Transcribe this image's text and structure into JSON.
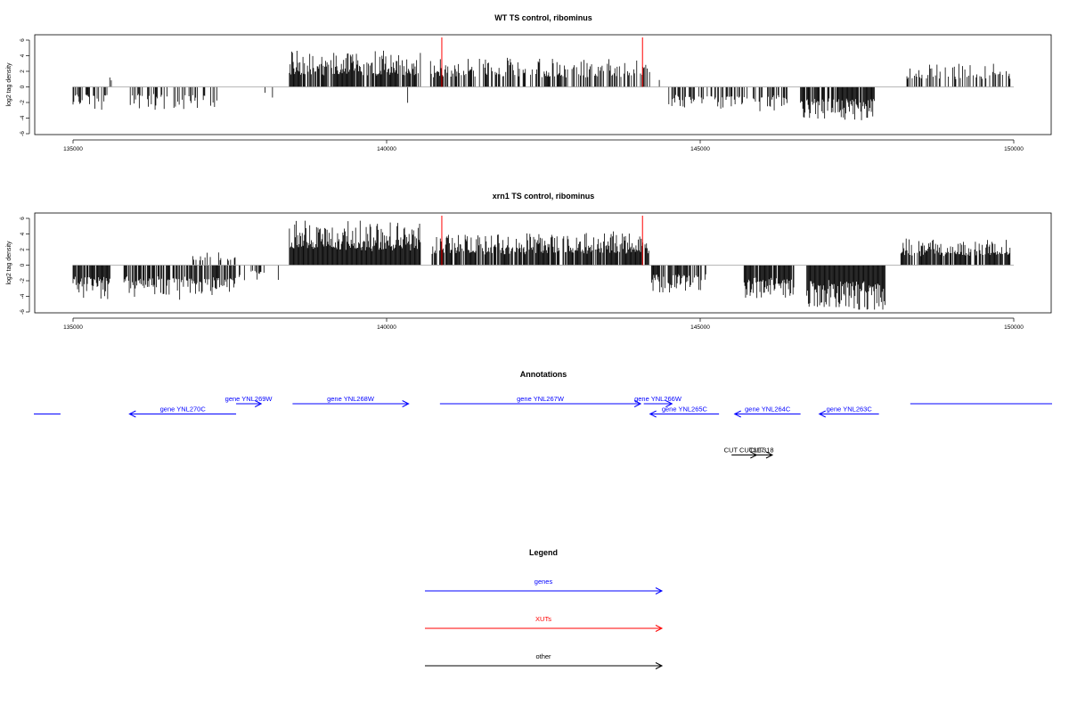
{
  "colors": {
    "gene": "#0000ff",
    "xut": "#ff0000",
    "other": "#000000",
    "bar": "#000000",
    "baseline": "#a0a0a0",
    "marker": "#ff0000"
  },
  "chart_data": [
    {
      "type": "bar",
      "title": "WT TS control, ribominus",
      "ylabel": "log2 tag density",
      "xlabel": "",
      "xlim": [
        135000,
        150000
      ],
      "ylim": [
        -6,
        6
      ],
      "xticks": [
        "135000",
        "140000",
        "145000",
        "150000"
      ],
      "xtick_values": [
        135000,
        140000,
        145000,
        150000
      ],
      "yticks": [
        "-6",
        "-4",
        "-2",
        "0",
        "2",
        "4",
        "6"
      ],
      "ytick_values": [
        -6,
        -4,
        -2,
        0,
        2,
        4,
        6
      ],
      "grid": false,
      "markers_x": [
        140880,
        144080
      ],
      "segments": [
        {
          "from": 135000,
          "to": 135550,
          "sign": -1,
          "amp": 2.0,
          "density": 0.5
        },
        {
          "from": 135550,
          "to": 135650,
          "sign": 1,
          "amp": 1.0,
          "density": 0.1
        },
        {
          "from": 135900,
          "to": 137300,
          "sign": -1,
          "amp": 2.0,
          "density": 0.35
        },
        {
          "from": 138000,
          "to": 138200,
          "sign": -1,
          "amp": 1.0,
          "density": 0.1
        },
        {
          "from": 138450,
          "to": 140550,
          "sign": 1,
          "amp": 3.2,
          "density": 0.85
        },
        {
          "from": 140300,
          "to": 140400,
          "sign": -1,
          "amp": 2.5,
          "density": 0.1
        },
        {
          "from": 140700,
          "to": 144200,
          "sign": 1,
          "amp": 2.6,
          "density": 0.55
        },
        {
          "from": 144300,
          "to": 144400,
          "sign": 1,
          "amp": 1.0,
          "density": 0.1
        },
        {
          "from": 144500,
          "to": 146400,
          "sign": -1,
          "amp": 2.2,
          "density": 0.45
        },
        {
          "from": 145900,
          "to": 146000,
          "sign": 1,
          "amp": 2.2,
          "density": 0.1
        },
        {
          "from": 146600,
          "to": 147800,
          "sign": -1,
          "amp": 3.0,
          "density": 0.85
        },
        {
          "from": 148200,
          "to": 149950,
          "sign": 1,
          "amp": 2.2,
          "density": 0.45
        }
      ]
    },
    {
      "type": "bar",
      "title": "xrn1 TS control, ribominus",
      "ylabel": "log2 tag density",
      "xlabel": "",
      "xlim": [
        135000,
        150000
      ],
      "ylim": [
        -6,
        6
      ],
      "xticks": [
        "135000",
        "140000",
        "145000",
        "150000"
      ],
      "xtick_values": [
        135000,
        140000,
        145000,
        150000
      ],
      "yticks": [
        "-6",
        "-4",
        "-2",
        "0",
        "2",
        "4",
        "6"
      ],
      "ytick_values": [
        -6,
        -4,
        -2,
        0,
        2,
        4,
        6
      ],
      "grid": false,
      "markers_x": [
        140880,
        144080
      ],
      "segments": [
        {
          "from": 135000,
          "to": 135600,
          "sign": -1,
          "amp": 3.2,
          "density": 0.85
        },
        {
          "from": 135800,
          "to": 137600,
          "sign": -1,
          "amp": 3.0,
          "density": 0.75
        },
        {
          "from": 136900,
          "to": 137600,
          "sign": 1,
          "amp": 1.2,
          "density": 0.25
        },
        {
          "from": 137600,
          "to": 138300,
          "sign": -1,
          "amp": 1.5,
          "density": 0.2
        },
        {
          "from": 138450,
          "to": 140550,
          "sign": 1,
          "amp": 4.0,
          "density": 1.0
        },
        {
          "from": 140700,
          "to": 144200,
          "sign": 1,
          "amp": 3.0,
          "density": 0.85
        },
        {
          "from": 144200,
          "to": 145100,
          "sign": -1,
          "amp": 2.5,
          "density": 0.65
        },
        {
          "from": 145700,
          "to": 146500,
          "sign": -1,
          "amp": 3.4,
          "density": 0.9
        },
        {
          "from": 146700,
          "to": 147950,
          "sign": -1,
          "amp": 4.2,
          "density": 1.0
        },
        {
          "from": 148200,
          "to": 149950,
          "sign": 1,
          "amp": 2.4,
          "density": 0.75
        }
      ]
    },
    {
      "type": "annotation_track",
      "title": "Annotations",
      "xlim": [
        135000,
        150000
      ],
      "features": [
        {
          "label": "",
          "start": 133800,
          "end": 134800,
          "strand": ".",
          "kind": "gene",
          "row": 1
        },
        {
          "label": "gene YNL270C",
          "start": 135900,
          "end": 137600,
          "strand": "-",
          "kind": "gene",
          "row": 1
        },
        {
          "label": "gene YNL269W",
          "start": 137600,
          "end": 138000,
          "strand": "+",
          "kind": "gene",
          "row": 0
        },
        {
          "label": "gene YNL268W",
          "start": 138500,
          "end": 140350,
          "strand": "+",
          "kind": "gene",
          "row": 0
        },
        {
          "label": "gene YNL267W",
          "start": 140850,
          "end": 144050,
          "strand": "+",
          "kind": "gene",
          "row": 0
        },
        {
          "label": "gene YNL266W",
          "start": 144100,
          "end": 144550,
          "strand": "+",
          "kind": "gene",
          "row": 0
        },
        {
          "label": "gene YNL265C",
          "start": 144200,
          "end": 145300,
          "strand": "-",
          "kind": "gene",
          "row": 1
        },
        {
          "label": "gene YNL264C",
          "start": 145550,
          "end": 146600,
          "strand": "-",
          "kind": "gene",
          "row": 1
        },
        {
          "label": "gene YNL263C",
          "start": 146900,
          "end": 147850,
          "strand": "-",
          "kind": "gene",
          "row": 1
        },
        {
          "label": "",
          "start": 148350,
          "end": 151000,
          "strand": ".",
          "kind": "gene",
          "row": 0
        },
        {
          "label": "CUT CUT317",
          "start": 145500,
          "end": 145900,
          "strand": "+",
          "kind": "other",
          "row": 5
        },
        {
          "label": "CUT318",
          "start": 145800,
          "end": 146150,
          "strand": "+",
          "kind": "other",
          "row": 5
        }
      ]
    }
  ],
  "legend": {
    "title": "Legend",
    "items": [
      {
        "label": "genes",
        "kind": "gene"
      },
      {
        "label": "XUTs",
        "kind": "xut"
      },
      {
        "label": "other",
        "kind": "other"
      }
    ]
  }
}
